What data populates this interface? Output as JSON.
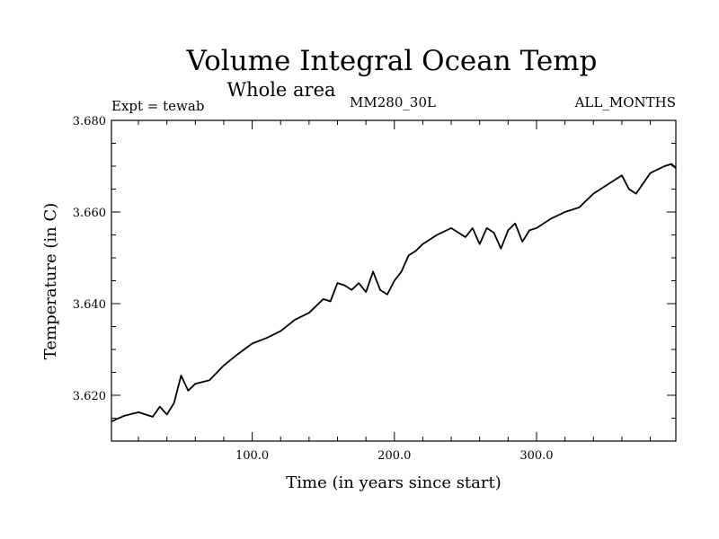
{
  "chart_data": {
    "type": "line",
    "title": "Volume Integral Ocean Temp",
    "subtitle": "Whole area",
    "annotations": {
      "left": "Expt = tewab",
      "center": "MM280_30L",
      "right": "ALL_MONTHS"
    },
    "xlabel": "Time (in years since start)",
    "ylabel": "Temperature (in C)",
    "xlim": [
      1,
      398
    ],
    "ylim": [
      3.61,
      3.68
    ],
    "x_ticks": [
      100,
      200,
      300
    ],
    "x_tick_labels": [
      "100.0",
      "200.0",
      "300.0"
    ],
    "y_ticks": [
      3.62,
      3.64,
      3.66,
      3.68
    ],
    "y_tick_labels": [
      "3.620",
      "3.640",
      "3.660",
      "3.680"
    ],
    "grid": false,
    "series": [
      {
        "x": [
          1,
          10,
          20,
          30,
          35,
          40,
          45,
          50,
          55,
          60,
          70,
          80,
          90,
          100,
          110,
          120,
          130,
          140,
          150,
          155,
          160,
          165,
          170,
          175,
          180,
          185,
          190,
          195,
          200,
          205,
          210,
          215,
          220,
          230,
          240,
          250,
          255,
          260,
          265,
          270,
          275,
          280,
          285,
          290,
          295,
          300,
          310,
          320,
          330,
          340,
          350,
          360,
          365,
          370,
          380,
          390,
          395,
          398
        ],
        "values": [
          3.6143,
          3.6155,
          3.6163,
          3.6153,
          3.6175,
          3.6158,
          3.6183,
          3.6243,
          3.621,
          3.6225,
          3.6233,
          3.6265,
          3.629,
          3.6313,
          3.6325,
          3.634,
          3.6365,
          3.638,
          3.641,
          3.6405,
          3.6445,
          3.644,
          3.643,
          3.6445,
          3.6425,
          3.647,
          3.643,
          3.642,
          3.645,
          3.647,
          3.6505,
          3.6515,
          3.653,
          3.655,
          3.6565,
          3.6545,
          3.6565,
          3.653,
          3.6565,
          3.6555,
          3.652,
          3.656,
          3.6575,
          3.6535,
          3.656,
          3.6565,
          3.6585,
          3.66,
          3.661,
          3.664,
          3.666,
          3.668,
          3.665,
          3.664,
          3.6685,
          3.67,
          3.6705,
          3.6695
        ]
      }
    ]
  }
}
